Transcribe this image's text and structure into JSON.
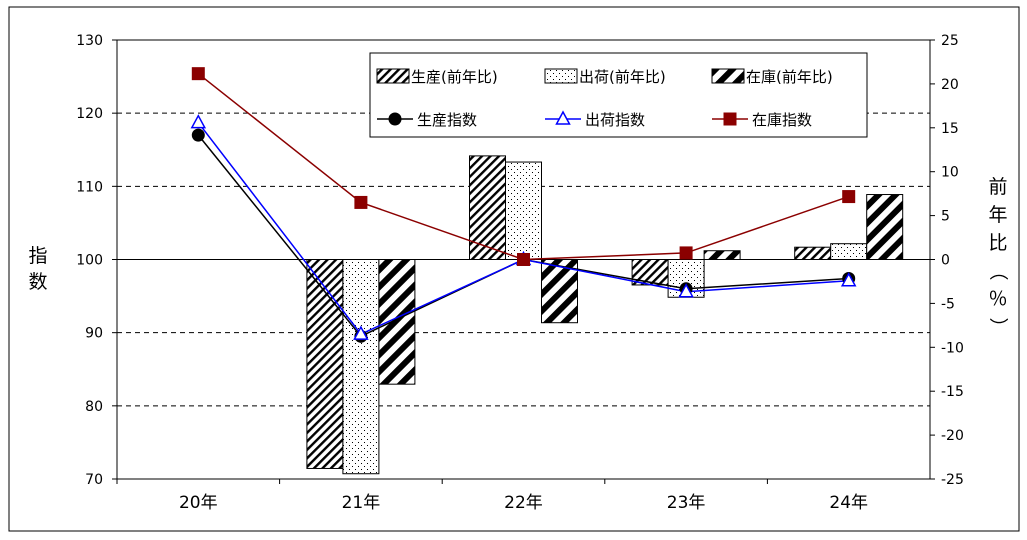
{
  "chart_data": {
    "type": "bar",
    "categories": [
      "20年",
      "21年",
      "22年",
      "23年",
      "24年"
    ],
    "left_axis": {
      "label_chars": [
        "指",
        "数"
      ],
      "ylim": [
        70,
        130
      ],
      "ticks": [
        70,
        80,
        90,
        100,
        110,
        120,
        130
      ]
    },
    "right_axis": {
      "label_chars": [
        "前",
        "年",
        "比",
        "（",
        "％",
        "）"
      ],
      "ylim": [
        -25,
        25
      ],
      "ticks": [
        -25,
        -20,
        -15,
        -10,
        -5,
        0,
        5,
        10,
        15,
        20,
        25
      ]
    },
    "grid": "dashed horizontal",
    "legend_position": "top-right",
    "bar_series": [
      {
        "name": "生産(前年比)",
        "axis": "right",
        "pattern": "thin-diagonal",
        "values": [
          null,
          -23.8,
          11.8,
          -2.9,
          1.4
        ]
      },
      {
        "name": "出荷(前年比)",
        "axis": "right",
        "pattern": "dots",
        "values": [
          null,
          -24.4,
          11.1,
          -4.3,
          1.8
        ]
      },
      {
        "name": "在庫(前年比)",
        "axis": "right",
        "pattern": "thick-diagonal",
        "values": [
          null,
          -14.2,
          -7.2,
          1.0,
          7.4
        ]
      }
    ],
    "line_series": [
      {
        "name": "生産指数",
        "axis": "left",
        "color": "#000000",
        "marker": "circle",
        "values": [
          117.0,
          89.5,
          100.0,
          96.0,
          97.4
        ]
      },
      {
        "name": "出荷指数",
        "axis": "left",
        "color": "#0000ff",
        "marker": "triangle",
        "values": [
          118.7,
          89.8,
          100.0,
          95.6,
          97.1
        ]
      },
      {
        "name": "在庫指数",
        "axis": "left",
        "color": "#8b0000",
        "marker": "square",
        "values": [
          125.4,
          107.8,
          100.0,
          100.9,
          108.6
        ]
      }
    ]
  }
}
